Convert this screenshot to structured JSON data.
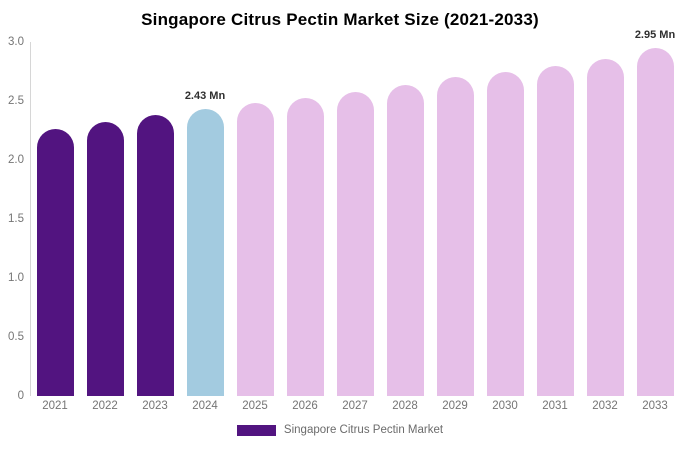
{
  "title": "Singapore Citrus Pectin Market Size (2021-2033)",
  "legend": {
    "label": "Singapore Citrus Pectin Market",
    "swatch_color": "#521480"
  },
  "colors": {
    "dark_purple": "#521480",
    "light_blue": "#a3cbe0",
    "light_pink": "#e6bfe8",
    "axis_line": "#d6d6d6",
    "axis_text": "#757575",
    "annotation_text": "#2f2f2f"
  },
  "chart_data": {
    "type": "bar",
    "title": "Singapore Citrus Pectin Market Size (2021-2033)",
    "categories": [
      "2021",
      "2022",
      "2023",
      "2024",
      "2025",
      "2026",
      "2027",
      "2028",
      "2029",
      "2030",
      "2031",
      "2032",
      "2033"
    ],
    "values": [
      2.26,
      2.32,
      2.38,
      2.43,
      2.48,
      2.53,
      2.58,
      2.64,
      2.7,
      2.75,
      2.8,
      2.86,
      2.95
    ],
    "unit": "Mn",
    "bar_colors": [
      "#521480",
      "#521480",
      "#521480",
      "#a3cbe0",
      "#e6bfe8",
      "#e6bfe8",
      "#e6bfe8",
      "#e6bfe8",
      "#e6bfe8",
      "#e6bfe8",
      "#e6bfe8",
      "#e6bfe8",
      "#e6bfe8"
    ],
    "annotations": [
      {
        "category": "2024",
        "label": "2.43 Mn"
      },
      {
        "category": "2033",
        "label": "2.95 Mn"
      }
    ],
    "xlabel": "",
    "ylabel": "",
    "ylim": [
      0,
      3.0
    ],
    "yticks": [
      "3.0",
      "2.5",
      "2.0",
      "1.5",
      "1.0",
      "0.5",
      "0"
    ],
    "ytick_values": [
      3.0,
      2.5,
      2.0,
      1.5,
      1.0,
      0.5,
      0
    ],
    "grid": false,
    "legend_position": "bottom"
  }
}
